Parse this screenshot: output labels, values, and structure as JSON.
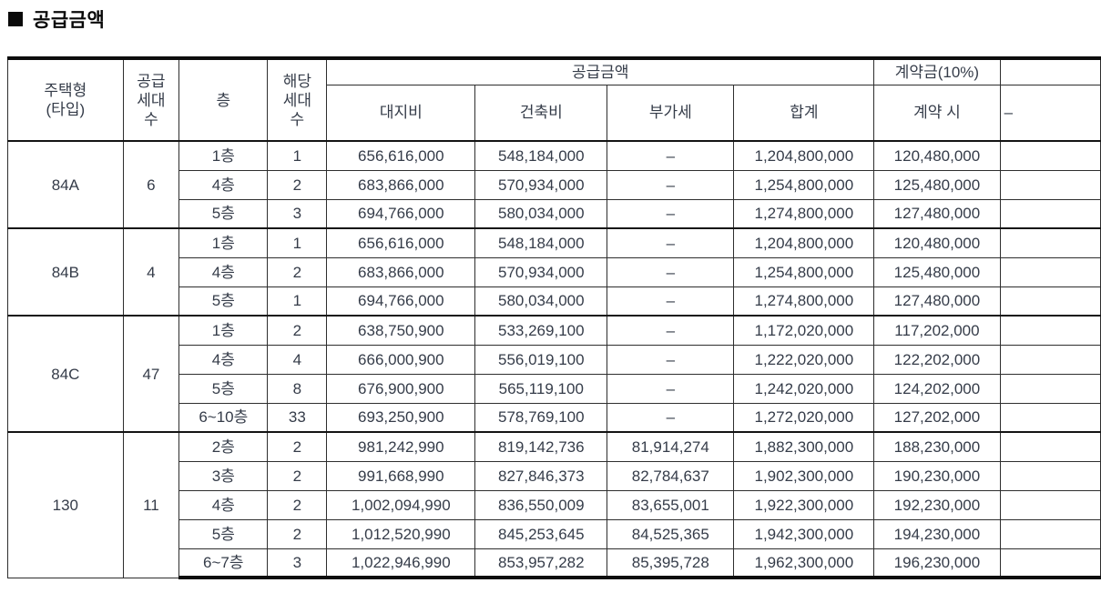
{
  "page": {
    "bullet": "■",
    "title": "공급금액"
  },
  "table": {
    "header": {
      "housing_type": "주택형\n(타입)",
      "supply_units": "공급\n세대\n수",
      "floor": "층",
      "applicable_units": "해당\n세대\n수",
      "supply_amount_group": "공급금액",
      "land_cost": "대지비",
      "construction_cost": "건축비",
      "vat": "부가세",
      "total": "합계",
      "down_payment_group": "계약금(10%)",
      "at_contract": "계약 시",
      "clipped_fragment": "–"
    },
    "groups": [
      {
        "type": "84A",
        "supply_count": "6",
        "rows": [
          {
            "floor": "1층",
            "units": "1",
            "land": "656,616,000",
            "construction": "548,184,000",
            "vat": "–",
            "total": "1,204,800,000",
            "contract": "120,480,000"
          },
          {
            "floor": "4층",
            "units": "2",
            "land": "683,866,000",
            "construction": "570,934,000",
            "vat": "–",
            "total": "1,254,800,000",
            "contract": "125,480,000"
          },
          {
            "floor": "5층",
            "units": "3",
            "land": "694,766,000",
            "construction": "580,034,000",
            "vat": "–",
            "total": "1,274,800,000",
            "contract": "127,480,000"
          }
        ]
      },
      {
        "type": "84B",
        "supply_count": "4",
        "rows": [
          {
            "floor": "1층",
            "units": "1",
            "land": "656,616,000",
            "construction": "548,184,000",
            "vat": "–",
            "total": "1,204,800,000",
            "contract": "120,480,000"
          },
          {
            "floor": "4층",
            "units": "2",
            "land": "683,866,000",
            "construction": "570,934,000",
            "vat": "–",
            "total": "1,254,800,000",
            "contract": "125,480,000"
          },
          {
            "floor": "5층",
            "units": "1",
            "land": "694,766,000",
            "construction": "580,034,000",
            "vat": "–",
            "total": "1,274,800,000",
            "contract": "127,480,000"
          }
        ]
      },
      {
        "type": "84C",
        "supply_count": "47",
        "rows": [
          {
            "floor": "1층",
            "units": "2",
            "land": "638,750,900",
            "construction": "533,269,100",
            "vat": "–",
            "total": "1,172,020,000",
            "contract": "117,202,000"
          },
          {
            "floor": "4층",
            "units": "4",
            "land": "666,000,900",
            "construction": "556,019,100",
            "vat": "–",
            "total": "1,222,020,000",
            "contract": "122,202,000"
          },
          {
            "floor": "5층",
            "units": "8",
            "land": "676,900,900",
            "construction": "565,119,100",
            "vat": "–",
            "total": "1,242,020,000",
            "contract": "124,202,000"
          },
          {
            "floor": "6~10층",
            "units": "33",
            "land": "693,250,900",
            "construction": "578,769,100",
            "vat": "–",
            "total": "1,272,020,000",
            "contract": "127,202,000"
          }
        ]
      },
      {
        "type": "130",
        "supply_count": "11",
        "rows": [
          {
            "floor": "2층",
            "units": "2",
            "land": "981,242,990",
            "construction": "819,142,736",
            "vat": "81,914,274",
            "total": "1,882,300,000",
            "contract": "188,230,000"
          },
          {
            "floor": "3층",
            "units": "2",
            "land": "991,668,990",
            "construction": "827,846,373",
            "vat": "82,784,637",
            "total": "1,902,300,000",
            "contract": "190,230,000"
          },
          {
            "floor": "4층",
            "units": "2",
            "land": "1,002,094,990",
            "construction": "836,550,009",
            "vat": "83,655,001",
            "total": "1,922,300,000",
            "contract": "192,230,000"
          },
          {
            "floor": "5층",
            "units": "2",
            "land": "1,012,520,990",
            "construction": "845,253,645",
            "vat": "84,525,365",
            "total": "1,942,300,000",
            "contract": "194,230,000"
          },
          {
            "floor": "6~7층",
            "units": "3",
            "land": "1,022,946,990",
            "construction": "853,957,282",
            "vat": "85,395,728",
            "total": "1,962,300,000",
            "contract": "196,230,000"
          }
        ]
      }
    ]
  }
}
